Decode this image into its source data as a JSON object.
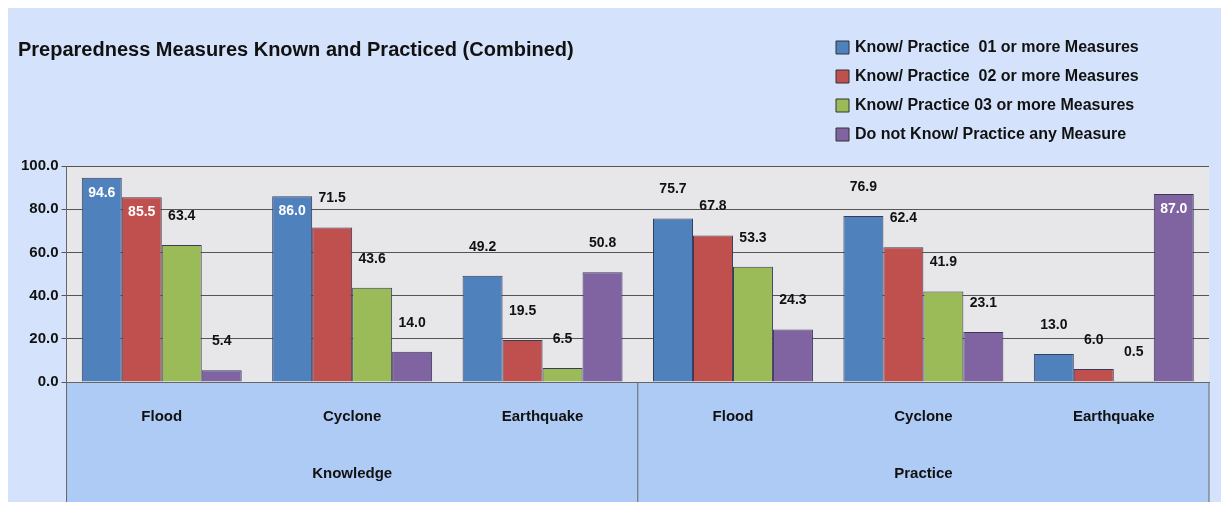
{
  "chart_data": {
    "type": "bar",
    "title": "Preparedness Measures Known and Practiced (Combined)",
    "categories": [
      "Flood",
      "Cyclone",
      "Earthquake",
      "Flood",
      "Cyclone",
      "Earthquake"
    ],
    "annotations": [
      "Knowledge",
      "Practice"
    ],
    "series": [
      {
        "name": "Know/ Practice  01 or more Measures",
        "color": "#4f81bd",
        "values": [
          94.6,
          86.0,
          49.2,
          75.7,
          76.9,
          13.0
        ],
        "value_labels": [
          "94.6",
          "86.0",
          "49.2",
          "75.7",
          "76.9",
          "13.0"
        ]
      },
      {
        "name": "Know/ Practice  02 or more Measures",
        "color": "#c0504d",
        "values": [
          85.5,
          71.5,
          19.5,
          67.8,
          62.4,
          6.0
        ],
        "value_labels": [
          "85.5",
          "71.5",
          "19.5",
          "67.8",
          "62.4",
          "6.0"
        ]
      },
      {
        "name": "Know/ Practice 03 or more Measures",
        "color": "#9bbb59",
        "values": [
          63.4,
          43.6,
          6.5,
          53.3,
          41.9,
          0.5
        ],
        "value_labels": [
          "63.4",
          "43.6",
          "6.5",
          "53.3",
          "41.9",
          "0.5"
        ]
      },
      {
        "name": "Do not Know/ Practice any Measure",
        "color": "#8064a2",
        "values": [
          5.4,
          14.0,
          50.8,
          24.3,
          23.1,
          87.0
        ],
        "value_labels": [
          "5.4",
          "14.0",
          "50.8",
          "24.3",
          "23.1",
          "87.0"
        ]
      }
    ],
    "ylim": [
      0,
      100
    ],
    "yticks": [
      {
        "value": 0,
        "label": "0.0"
      },
      {
        "value": 20,
        "label": "20.0"
      },
      {
        "value": 40,
        "label": "40.0"
      },
      {
        "value": 60,
        "label": "60.0"
      },
      {
        "value": 80,
        "label": "80.0"
      },
      {
        "value": 100,
        "label": "100.0"
      }
    ],
    "grid": "y",
    "legend": "top right"
  }
}
